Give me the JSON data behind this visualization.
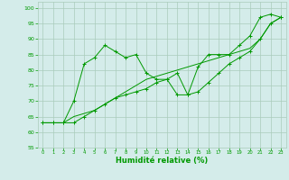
{
  "title": "",
  "xlabel": "Humidité relative (%)",
  "ylabel": "",
  "bg_color": "#d4ecea",
  "grid_color": "#aaccbb",
  "line_color": "#009900",
  "xlim": [
    -0.5,
    23.5
  ],
  "ylim": [
    55,
    102
  ],
  "yticks": [
    55,
    60,
    65,
    70,
    75,
    80,
    85,
    90,
    95,
    100
  ],
  "xticks": [
    0,
    1,
    2,
    3,
    4,
    5,
    6,
    7,
    8,
    9,
    10,
    11,
    12,
    13,
    14,
    15,
    16,
    17,
    18,
    19,
    20,
    21,
    22,
    23
  ],
  "series1": [
    63,
    63,
    63,
    70,
    82,
    84,
    88,
    86,
    84,
    85,
    79,
    77,
    77,
    79,
    72,
    81,
    85,
    85,
    85,
    88,
    91,
    97,
    98,
    97
  ],
  "series2": [
    63,
    63,
    63,
    63,
    65,
    67,
    69,
    71,
    72,
    73,
    74,
    76,
    77,
    72,
    72,
    73,
    76,
    79,
    82,
    84,
    86,
    90,
    95,
    97
  ],
  "series3": [
    63,
    63,
    63,
    65,
    66,
    67,
    69,
    71,
    73,
    75,
    77,
    78,
    79,
    80,
    81,
    82,
    83,
    84,
    85,
    86,
    87,
    90,
    95,
    97
  ]
}
